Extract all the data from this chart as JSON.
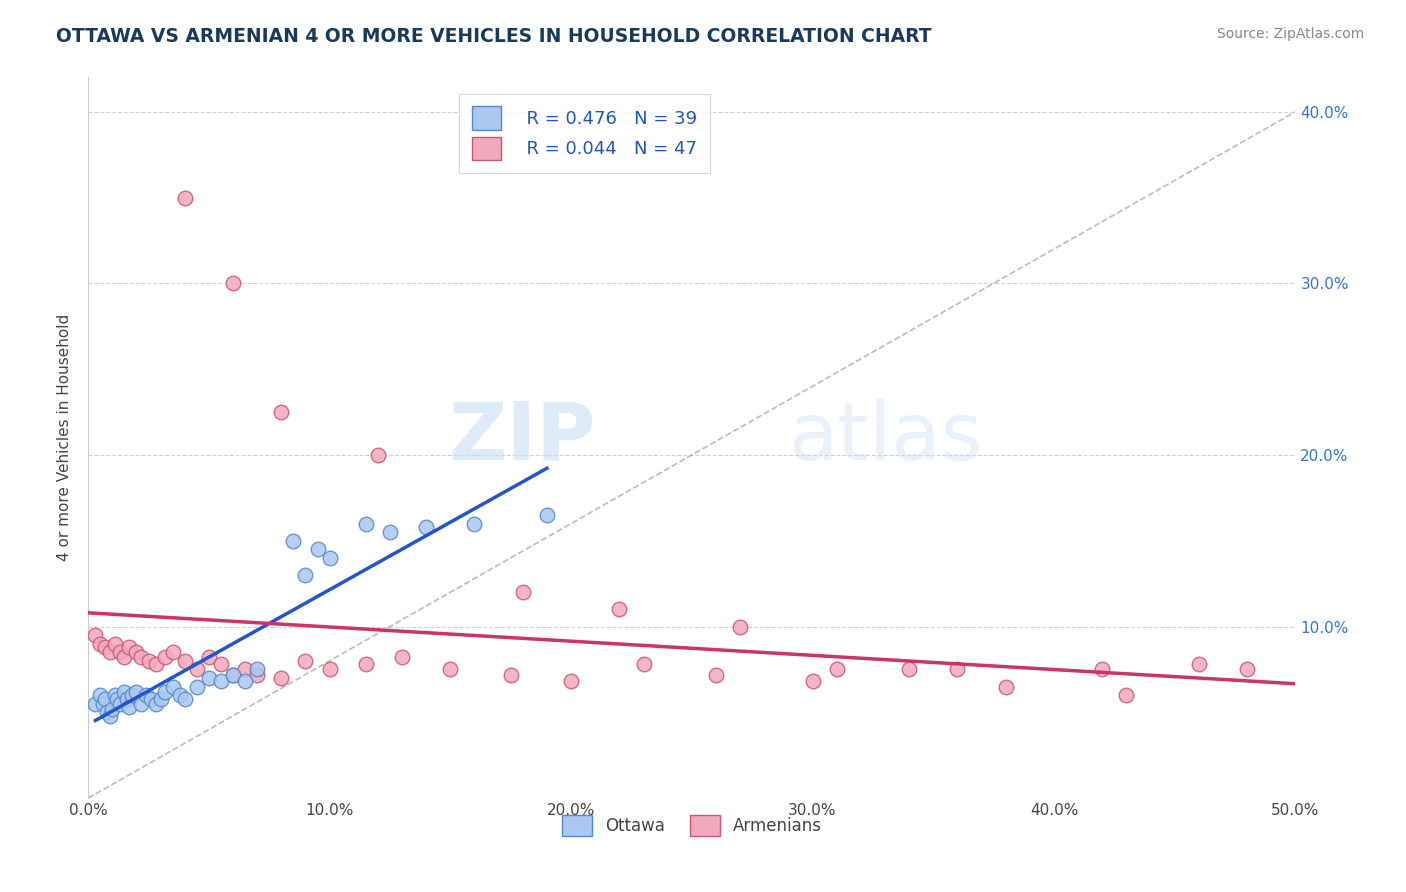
{
  "title": "OTTAWA VS ARMENIAN 4 OR MORE VEHICLES IN HOUSEHOLD CORRELATION CHART",
  "source": "Source: ZipAtlas.com",
  "ylabel": "4 or more Vehicles in Household",
  "xlim": [
    0.0,
    0.5
  ],
  "ylim": [
    0.0,
    0.42
  ],
  "xticks": [
    0.0,
    0.1,
    0.2,
    0.3,
    0.4,
    0.5
  ],
  "xticklabels": [
    "0.0%",
    "10.0%",
    "20.0%",
    "30.0%",
    "40.0%",
    "50.0%"
  ],
  "yticks_right": [
    0.1,
    0.2,
    0.3,
    0.4
  ],
  "yticklabels_right": [
    "10.0%",
    "20.0%",
    "30.0%",
    "40.0%"
  ],
  "ottawa_color": "#aac8f0",
  "armenian_color": "#f0aabb",
  "ottawa_edge": "#5588cc",
  "armenian_edge": "#cc5577",
  "trendline_ottawa_color": "#2255cc",
  "trendline_armenian_color": "#cc3366",
  "legend_label_ottawa": "Ottawa",
  "legend_label_armenian": "Armenians",
  "r_ottawa": "0.476",
  "n_ottawa": "39",
  "r_armenian": "0.044",
  "n_armenian": "47",
  "watermark_zip": "ZIP",
  "watermark_atlas": "atlas",
  "ref_line_color": "#aaaaaa",
  "ottawa_x": [
    0.003,
    0.005,
    0.006,
    0.007,
    0.008,
    0.009,
    0.01,
    0.011,
    0.012,
    0.013,
    0.015,
    0.016,
    0.017,
    0.018,
    0.02,
    0.022,
    0.024,
    0.026,
    0.028,
    0.03,
    0.032,
    0.035,
    0.038,
    0.04,
    0.045,
    0.05,
    0.055,
    0.06,
    0.065,
    0.07,
    0.085,
    0.09,
    0.095,
    0.1,
    0.115,
    0.125,
    0.14,
    0.16,
    0.19
  ],
  "ottawa_y": [
    0.055,
    0.06,
    0.055,
    0.058,
    0.05,
    0.048,
    0.052,
    0.06,
    0.058,
    0.055,
    0.062,
    0.058,
    0.053,
    0.06,
    0.062,
    0.055,
    0.06,
    0.058,
    0.055,
    0.058,
    0.062,
    0.065,
    0.06,
    0.058,
    0.065,
    0.07,
    0.068,
    0.072,
    0.068,
    0.075,
    0.15,
    0.13,
    0.145,
    0.14,
    0.16,
    0.155,
    0.158,
    0.16,
    0.165
  ],
  "armenian_x": [
    0.003,
    0.005,
    0.007,
    0.009,
    0.011,
    0.013,
    0.015,
    0.017,
    0.02,
    0.022,
    0.025,
    0.028,
    0.032,
    0.035,
    0.04,
    0.045,
    0.05,
    0.055,
    0.06,
    0.065,
    0.07,
    0.08,
    0.09,
    0.1,
    0.115,
    0.13,
    0.15,
    0.175,
    0.2,
    0.23,
    0.26,
    0.3,
    0.34,
    0.38,
    0.42,
    0.46,
    0.04,
    0.06,
    0.08,
    0.12,
    0.18,
    0.22,
    0.27,
    0.31,
    0.36,
    0.43,
    0.48
  ],
  "armenian_y": [
    0.095,
    0.09,
    0.088,
    0.085,
    0.09,
    0.085,
    0.082,
    0.088,
    0.085,
    0.082,
    0.08,
    0.078,
    0.082,
    0.085,
    0.08,
    0.075,
    0.082,
    0.078,
    0.072,
    0.075,
    0.072,
    0.07,
    0.08,
    0.075,
    0.078,
    0.082,
    0.075,
    0.072,
    0.068,
    0.078,
    0.072,
    0.068,
    0.075,
    0.065,
    0.075,
    0.078,
    0.35,
    0.3,
    0.225,
    0.2,
    0.12,
    0.11,
    0.1,
    0.075,
    0.075,
    0.06,
    0.075
  ]
}
